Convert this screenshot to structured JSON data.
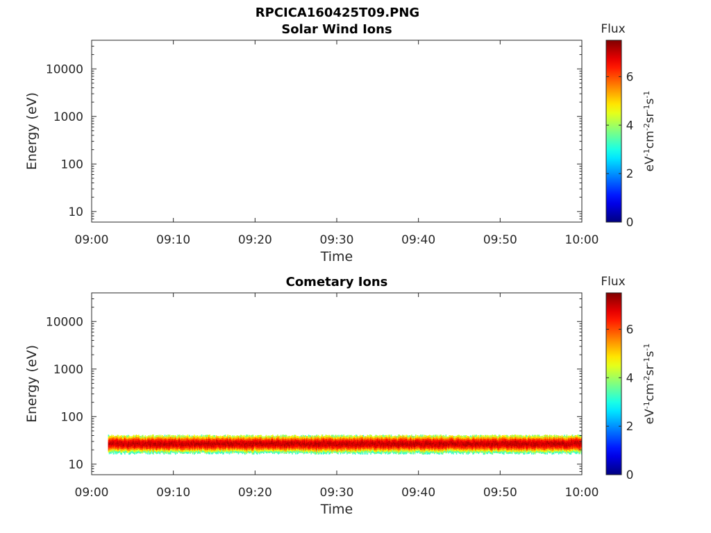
{
  "figure_title": "RPCICA160425T09.PNG",
  "chart_data": [
    {
      "type": "heatmap",
      "title": "Solar Wind Ions",
      "xlabel": "Time",
      "ylabel": "Energy (eV)",
      "x_ticks": [
        "09:00",
        "09:10",
        "09:20",
        "09:30",
        "09:40",
        "09:50",
        "10:00"
      ],
      "x_range": [
        "09:00",
        "10:00"
      ],
      "y_scale": "log",
      "y_ticks": [
        10,
        100,
        1000,
        10000
      ],
      "y_tick_labels": [
        "10",
        "100",
        "1000",
        "10000"
      ],
      "y_range": [
        6,
        40000
      ],
      "colorbar": {
        "label": "Flux",
        "unit": "eV-1cm-2sr-1s-1",
        "range": [
          0,
          7.5
        ],
        "ticks": [
          0,
          2,
          4,
          6
        ],
        "tick_labels": [
          "0",
          "2",
          "4",
          "6"
        ],
        "colormap": "jet"
      },
      "bands": []
    },
    {
      "type": "heatmap",
      "title": "Cometary Ions",
      "xlabel": "Time",
      "ylabel": "Energy (eV)",
      "x_ticks": [
        "09:00",
        "09:10",
        "09:20",
        "09:30",
        "09:40",
        "09:50",
        "10:00"
      ],
      "x_range": [
        "09:00",
        "10:00"
      ],
      "y_scale": "log",
      "y_ticks": [
        10,
        100,
        1000,
        10000
      ],
      "y_tick_labels": [
        "10",
        "100",
        "1000",
        "10000"
      ],
      "y_range": [
        6,
        40000
      ],
      "colorbar": {
        "label": "Flux",
        "unit": "eV-1cm-2sr-1s-1",
        "range": [
          0,
          7.5
        ],
        "ticks": [
          0,
          2,
          4,
          6
        ],
        "tick_labels": [
          "0",
          "2",
          "4",
          "6"
        ],
        "colormap": "jet"
      },
      "bands": [
        {
          "start": "09:02",
          "end": "10:00",
          "energy_min": 17,
          "energy_max": 40,
          "peak_energy": 27,
          "peak_flux": 7
        }
      ]
    }
  ]
}
